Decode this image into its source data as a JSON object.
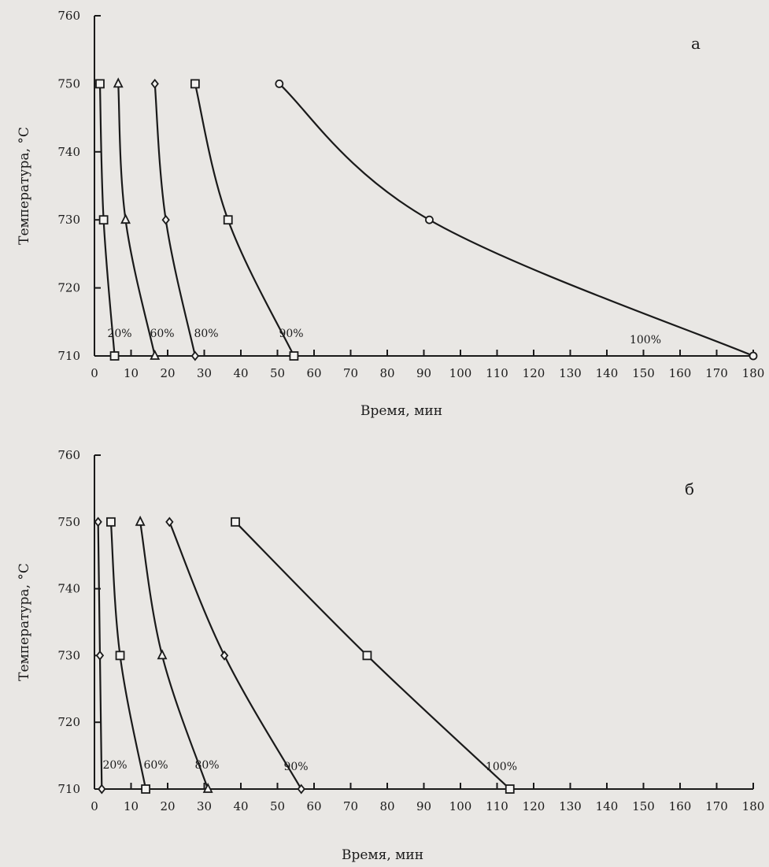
{
  "chart_data": [
    {
      "type": "line",
      "panel_letter": "а",
      "xlabel": "Время, мин",
      "ylabel": "Температура, °С",
      "xlim": [
        0,
        180
      ],
      "ylim": [
        710,
        760
      ],
      "x_ticks": [
        0,
        10,
        20,
        30,
        40,
        50,
        60,
        70,
        80,
        90,
        100,
        110,
        120,
        130,
        140,
        150,
        160,
        170,
        180
      ],
      "y_ticks": [
        710,
        720,
        730,
        740,
        750,
        760
      ],
      "grid": false,
      "series": [
        {
          "name": "20%",
          "marker": "square",
          "points": [
            [
              1.5,
              750
            ],
            [
              2.5,
              730
            ],
            [
              5.5,
              710
            ]
          ]
        },
        {
          "name": "60%",
          "marker": "triangle",
          "points": [
            [
              6.5,
              750
            ],
            [
              8.5,
              730
            ],
            [
              16.5,
              710
            ]
          ]
        },
        {
          "name": "80%",
          "marker": "diamond",
          "points": [
            [
              16.5,
              750
            ],
            [
              19.5,
              730
            ],
            [
              27.5,
              710
            ]
          ]
        },
        {
          "name": "90%",
          "marker": "square",
          "points": [
            [
              27.5,
              750
            ],
            [
              36.5,
              730
            ],
            [
              54.5,
              710
            ]
          ]
        },
        {
          "name": "100%",
          "marker": "circle",
          "points": [
            [
              50.5,
              750
            ],
            [
              91.5,
              730
            ],
            [
              180,
              710
            ]
          ]
        }
      ]
    },
    {
      "type": "line",
      "panel_letter": "б",
      "xlabel": "Время, мин",
      "ylabel": "Температура, °С",
      "xlim": [
        0,
        180
      ],
      "ylim": [
        710,
        760
      ],
      "x_ticks": [
        0,
        10,
        20,
        30,
        40,
        50,
        60,
        70,
        80,
        90,
        100,
        110,
        120,
        130,
        140,
        150,
        160,
        170,
        180
      ],
      "y_ticks": [
        710,
        720,
        730,
        740,
        750,
        760
      ],
      "grid": false,
      "series": [
        {
          "name": "20%",
          "marker": "diamond",
          "points": [
            [
              1,
              750
            ],
            [
              1.5,
              730
            ],
            [
              2,
              710
            ]
          ]
        },
        {
          "name": "60%",
          "marker": "square",
          "points": [
            [
              4.5,
              750
            ],
            [
              7,
              730
            ],
            [
              14,
              710
            ]
          ]
        },
        {
          "name": "80%",
          "marker": "triangle",
          "points": [
            [
              12.5,
              750
            ],
            [
              18.5,
              730
            ],
            [
              31,
              710
            ]
          ]
        },
        {
          "name": "90%",
          "marker": "diamond",
          "points": [
            [
              20.5,
              750
            ],
            [
              35.5,
              730
            ],
            [
              56.5,
              710
            ]
          ]
        },
        {
          "name": "100%",
          "marker": "square",
          "points": [
            [
              38.5,
              750
            ],
            [
              74.5,
              730
            ],
            [
              113.5,
              710
            ]
          ]
        }
      ]
    }
  ]
}
